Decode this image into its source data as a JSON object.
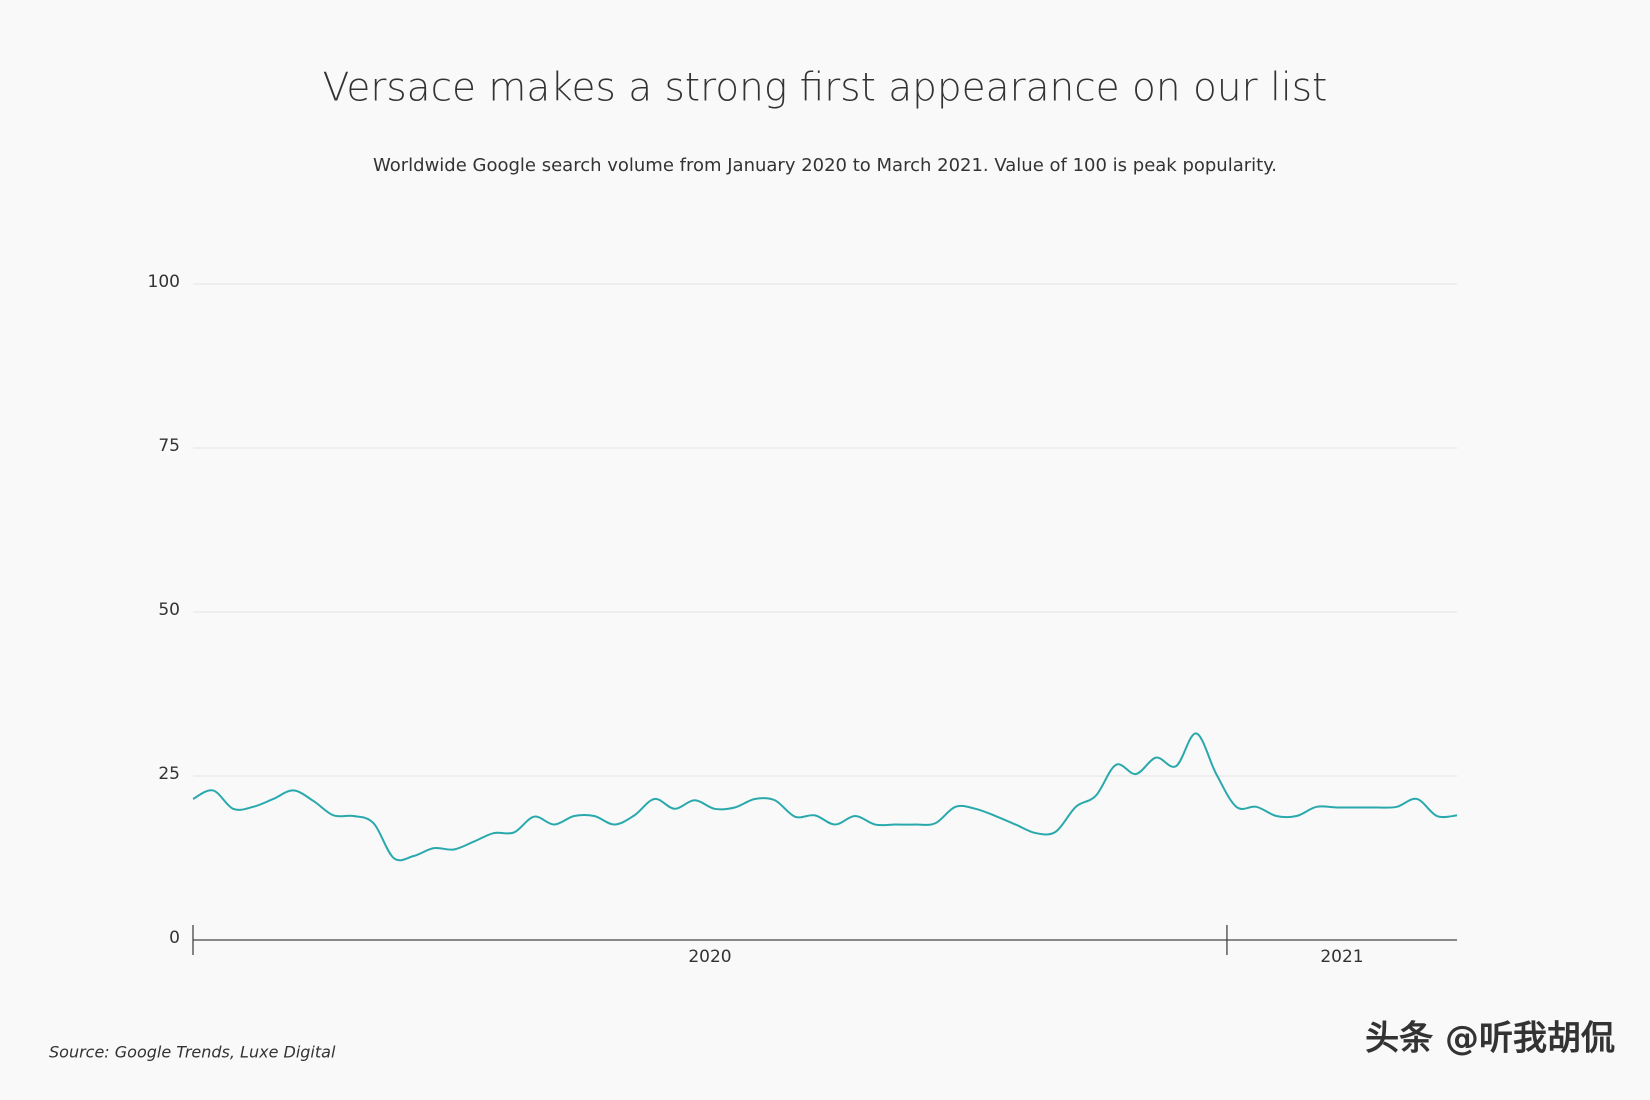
{
  "chart_data": {
    "type": "line",
    "title": "Versace makes a strong first appearance on our list",
    "subtitle": "Worldwide Google search volume from January 2020 to March 2021. Value of 100 is peak popularity.",
    "x_labels": [
      "2020",
      "2021"
    ],
    "series": [
      {
        "name": "Versace",
        "color": "#2aa9ad",
        "values": [
          21.5,
          22.8,
          20,
          20.3,
          21.5,
          22.8,
          21.2,
          19,
          18.9,
          17.8,
          12.5,
          12.8,
          14,
          13.8,
          15,
          16.3,
          16.4,
          18.8,
          17.6,
          18.9,
          18.9,
          17.6,
          19,
          21.5,
          20,
          21.3,
          20,
          20.2,
          21.5,
          21.3,
          18.8,
          19,
          17.6,
          18.9,
          17.6,
          17.6,
          17.6,
          17.8,
          20.3,
          20,
          18.9,
          17.6,
          16.3,
          16.5,
          20.3,
          22,
          26.7,
          25.3,
          27.8,
          26.5,
          31.5,
          25.3,
          20.3,
          20.3,
          18.9,
          18.9,
          20.3,
          20.2,
          20.2,
          20.2,
          20.3,
          21.5,
          18.9,
          19
        ]
      }
    ],
    "ylim": [
      0,
      100
    ],
    "yticks": [
      0,
      25,
      50,
      75,
      100
    ],
    "grid": true,
    "source": "Source: Google Trends, Luxe Digital",
    "watermark": "头条 @听我胡侃"
  }
}
